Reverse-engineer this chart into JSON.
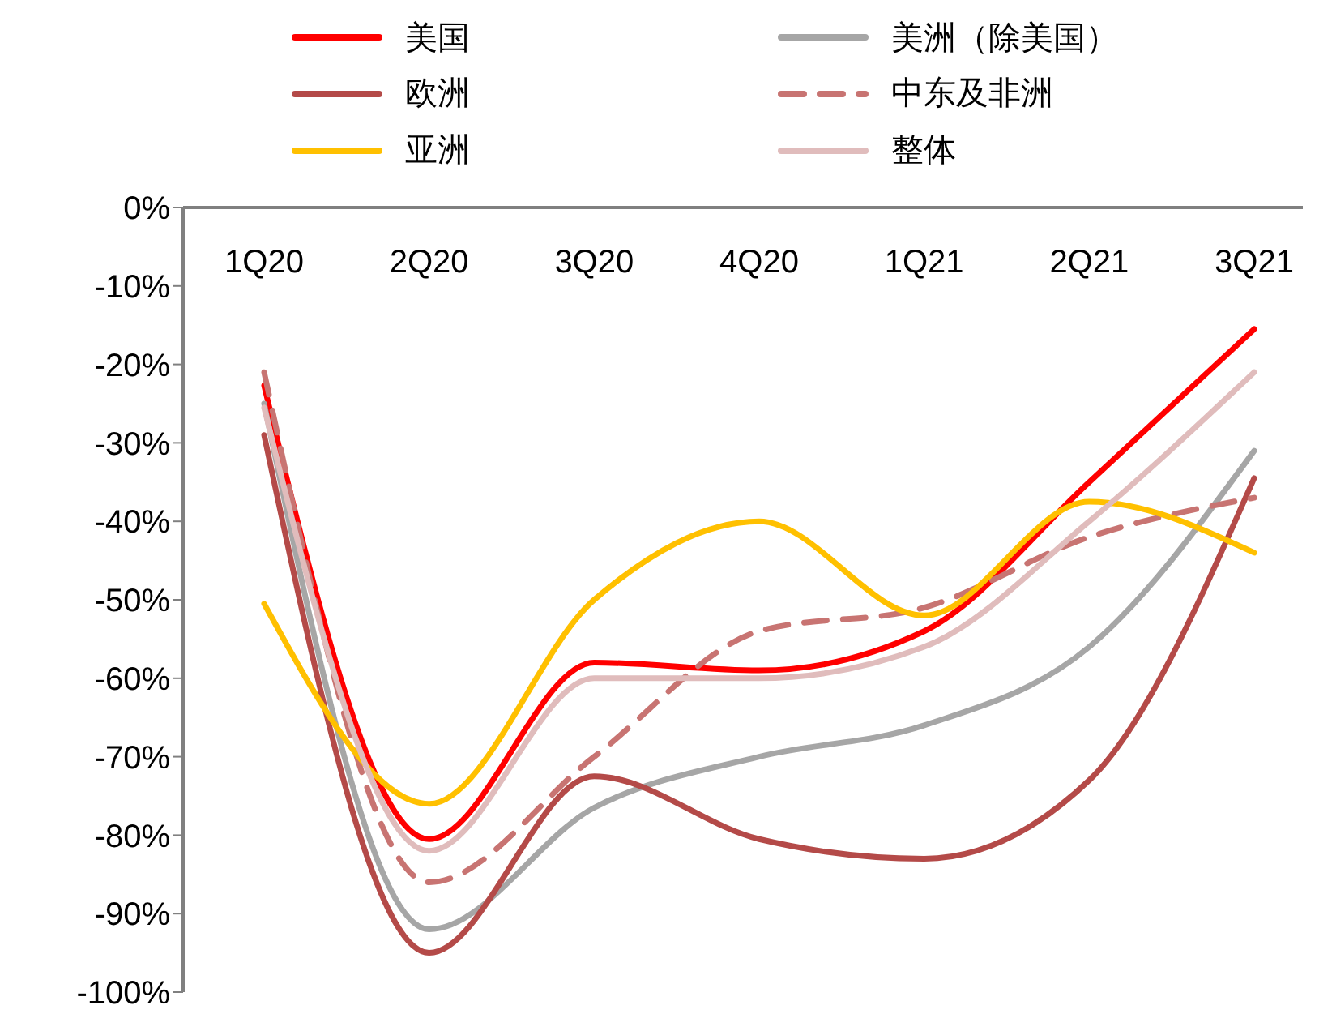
{
  "chart_data": {
    "type": "line",
    "categories": [
      "1Q20",
      "2Q20",
      "3Q20",
      "4Q20",
      "1Q21",
      "2Q21",
      "3Q21"
    ],
    "series": [
      {
        "name": "美国",
        "color": "#ff0000",
        "values": [
          -22.7,
          -80.5,
          -58,
          -59,
          -54,
          -35,
          -15.5
        ]
      },
      {
        "name": "美洲（除美国）",
        "color": "#a6a6a6",
        "values": [
          -25,
          -92,
          -76.5,
          -70,
          -66,
          -56,
          -31
        ]
      },
      {
        "name": "欧洲",
        "color": "#b44a48",
        "values": [
          -29,
          -95,
          -72.5,
          -80.5,
          -83,
          -73,
          -34.5
        ]
      },
      {
        "name": "中东及非洲",
        "color": "#c87472",
        "line_style": "dashed",
        "values": [
          -21,
          -86,
          -70,
          -54,
          -51,
          -42,
          -37
        ]
      },
      {
        "name": "亚洲",
        "color": "#ffc000",
        "values": [
          -50.5,
          -76,
          -50,
          -40,
          -52,
          -37.5,
          -44
        ]
      },
      {
        "name": "整体",
        "color": "#e0bcbc",
        "values": [
          -25.5,
          -82,
          -60,
          -60,
          -56,
          -40,
          -21
        ]
      }
    ],
    "ylim": [
      -100,
      0
    ],
    "yticks": [
      {
        "value": 0,
        "label": "0%"
      },
      {
        "value": -10,
        "label": "-10%"
      },
      {
        "value": -20,
        "label": "-20%"
      },
      {
        "value": -30,
        "label": "-30%"
      },
      {
        "value": -40,
        "label": "-40%"
      },
      {
        "value": -50,
        "label": "-50%"
      },
      {
        "value": -60,
        "label": "-60%"
      },
      {
        "value": -70,
        "label": "-70%"
      },
      {
        "value": -80,
        "label": "-80%"
      },
      {
        "value": -90,
        "label": "-90%"
      },
      {
        "value": -100,
        "label": "-100%"
      }
    ],
    "grid": false,
    "legend": "top",
    "marker": "none",
    "line_style": "solid"
  }
}
